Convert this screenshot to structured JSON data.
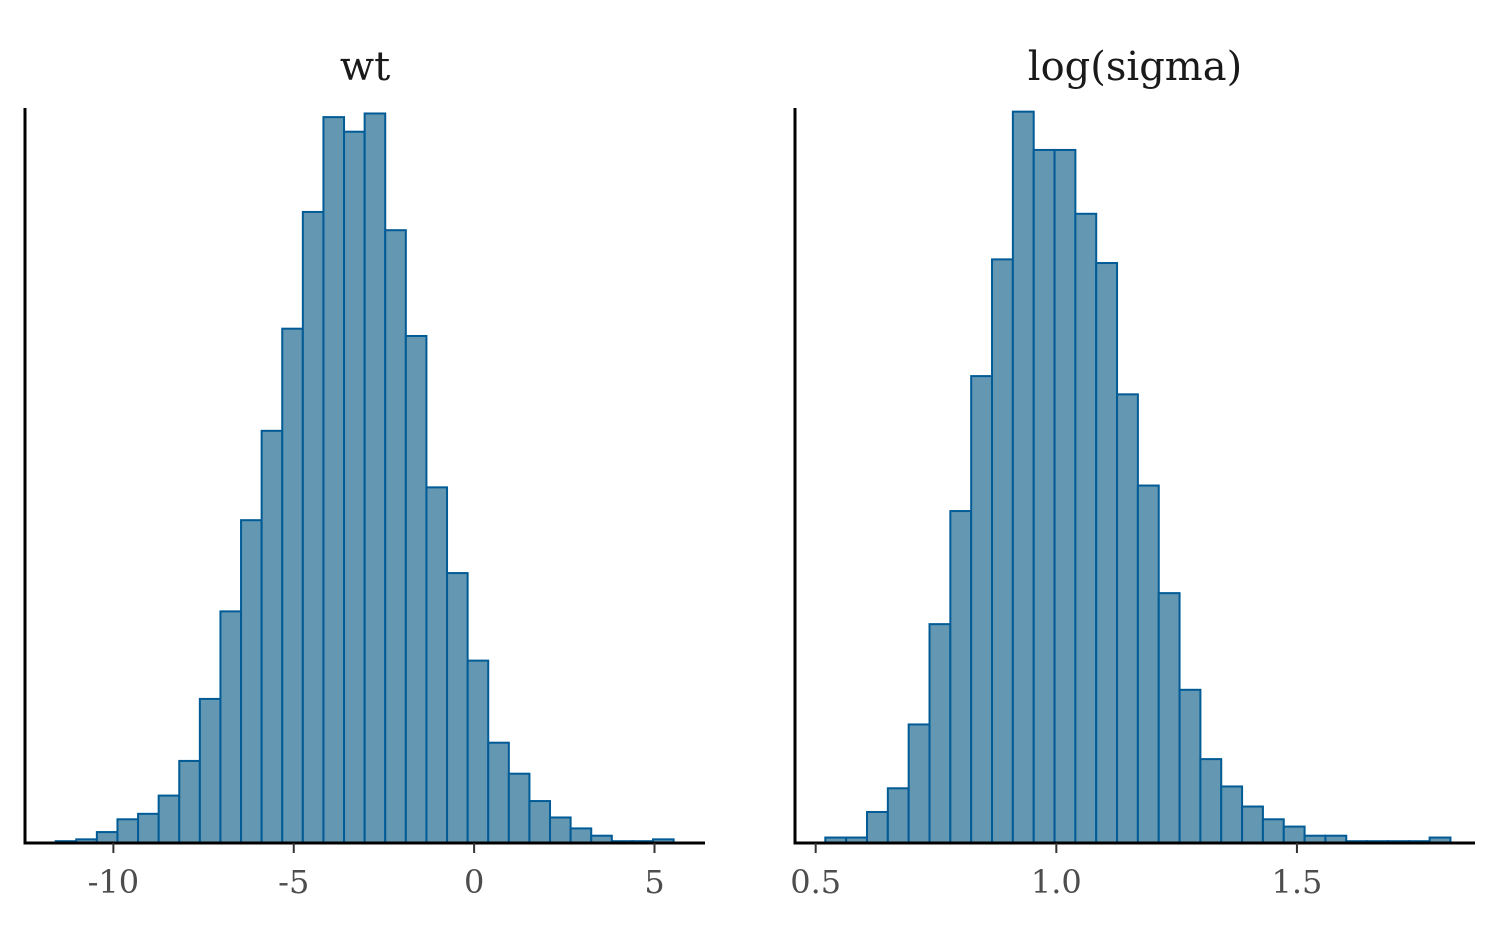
{
  "chart_data": [
    {
      "type": "bar",
      "title": "wt",
      "xlabel": "",
      "ylabel": "",
      "x_ticks": [
        {
          "value": -10,
          "label": "-10"
        },
        {
          "value": -5,
          "label": "-5"
        },
        {
          "value": 0,
          "label": "0"
        },
        {
          "value": 5,
          "label": "5"
        }
      ],
      "xlim": [
        -12.45,
        6.4
      ],
      "ylim": [
        0,
        403
      ],
      "bin_start": -11.6,
      "bin_width": 0.571,
      "counts": [
        1,
        2,
        6,
        13,
        16,
        26,
        45,
        79,
        127,
        177,
        226,
        282,
        346,
        398,
        390,
        400,
        336,
        278,
        195,
        148,
        100,
        55,
        38,
        23,
        14,
        8,
        4,
        1,
        1,
        2
      ],
      "colors": {
        "fill": "#6497b1",
        "stroke": "#005b96"
      }
    },
    {
      "type": "bar",
      "title": "log(sigma)",
      "xlabel": "",
      "ylabel": "",
      "x_ticks": [
        {
          "value": 0.5,
          "label": "0.5"
        },
        {
          "value": 1.0,
          "label": "1.0"
        },
        {
          "value": 1.5,
          "label": "1.5"
        }
      ],
      "xlim": [
        0.457,
        1.87
      ],
      "ylim": [
        0,
        403
      ],
      "bin_start": 0.52,
      "bin_width": 0.0433,
      "counts": [
        3,
        3,
        17,
        30,
        65,
        120,
        182,
        256,
        320,
        401,
        380,
        380,
        345,
        318,
        246,
        196,
        137,
        84,
        46,
        31,
        20,
        13,
        9,
        4,
        4,
        1,
        1,
        1,
        1,
        3
      ],
      "colors": {
        "fill": "#6497b1",
        "stroke": "#005b96"
      }
    }
  ]
}
